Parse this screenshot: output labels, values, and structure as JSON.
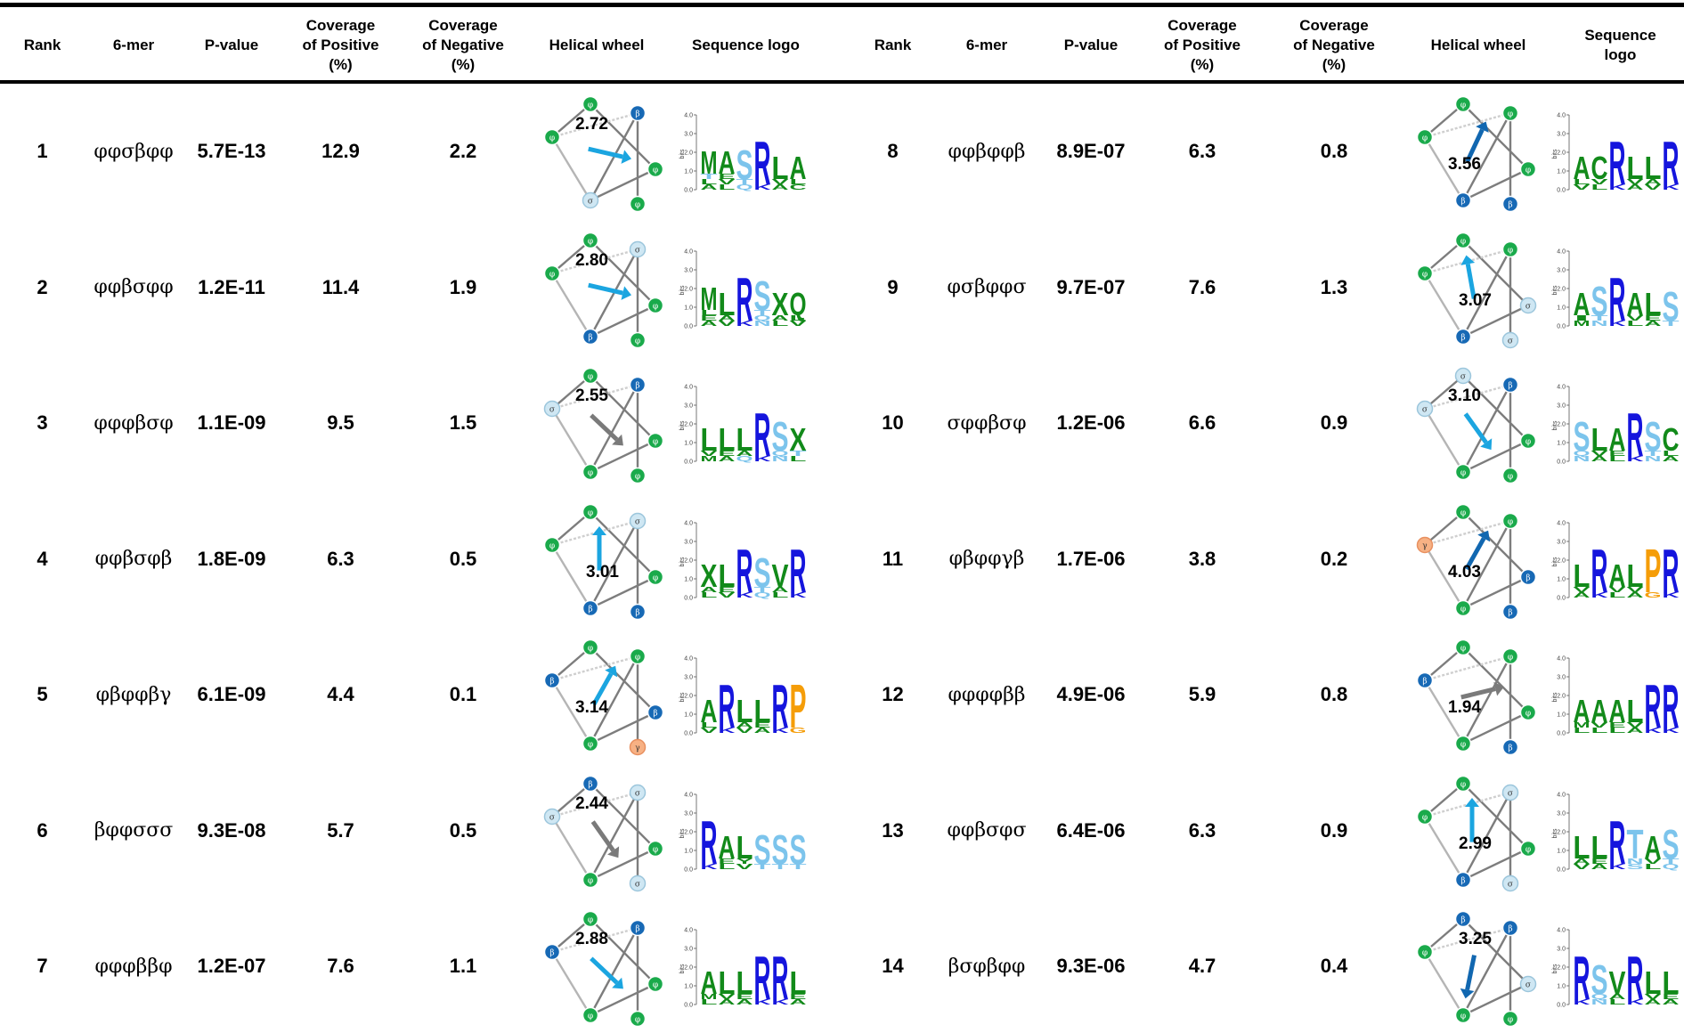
{
  "headers": {
    "rank": "Rank",
    "mer": "6-mer",
    "pval": "P-value",
    "covpos": "Coverage\nof Positive\n(%)",
    "covneg": "Coverage\nof Negative\n(%)",
    "wheel": "Helical wheel",
    "logo": "Sequence logo",
    "logo_right": "Sequence\nlogo"
  },
  "colors": {
    "phi": "#1aaa4b",
    "beta": "#1769b5",
    "sigma": "#cfe7f3",
    "gamma": "#f7b184",
    "arrow_blue": "#1ba5e0",
    "arrow_dark": "#1167b0",
    "arrow_gray": "#7a7a7a",
    "logo_green": "#128a1a",
    "logo_blue": "#1515dd",
    "logo_light": "#7cc4ec",
    "logo_orange": "#f59d08"
  },
  "logo_axis": {
    "ylabel": "bits",
    "ticks": [
      "4.0",
      "3.0",
      "2.0",
      "1.0",
      "0.0"
    ]
  },
  "rows_left": [
    {
      "rank": "1",
      "mer": "φφσβφφ",
      "pval": "5.7E-13",
      "cov_pos": "12.9",
      "cov_neg": "2.2",
      "moment": "2.72",
      "arrow": "blue",
      "logo": [
        [
          "M",
          "ALT",
          "#128a1a"
        ],
        [
          "A",
          "LVE",
          "#128a1a"
        ],
        [
          "S",
          "QT",
          "#7cc4ec"
        ],
        [
          "R",
          "K",
          "#1515dd"
        ],
        [
          "L",
          "AV",
          "#128a1a"
        ],
        [
          "A",
          "CL",
          "#128a1a"
        ]
      ]
    },
    {
      "rank": "2",
      "mer": "φφβσφφ",
      "pval": "1.2E-11",
      "cov_pos": "11.4",
      "cov_neg": "1.9",
      "moment": "2.80",
      "arrow": "blue",
      "logo": [
        [
          "M",
          "AEL",
          "#128a1a"
        ],
        [
          "L",
          "VA",
          "#128a1a"
        ],
        [
          "R",
          "K",
          "#1515dd"
        ],
        [
          "S",
          "NQT",
          "#7cc4ec"
        ],
        [
          "X",
          "LA",
          "#128a1a"
        ],
        [
          "Q",
          "VL",
          "#128a1a"
        ]
      ]
    },
    {
      "rank": "3",
      "mer": "φφφβσφ",
      "pval": "1.1E-09",
      "cov_pos": "9.5",
      "cov_neg": "1.5",
      "moment": "2.55",
      "arrow": "gray",
      "logo": [
        [
          "L",
          "MV",
          "#128a1a"
        ],
        [
          "L",
          "AE",
          "#128a1a"
        ],
        [
          "L",
          "QA",
          "#128a1a"
        ],
        [
          "R",
          "K",
          "#1515dd"
        ],
        [
          "S",
          "NQ",
          "#7cc4ec"
        ],
        [
          "X",
          "LT",
          "#128a1a"
        ]
      ]
    },
    {
      "rank": "4",
      "mer": "φφβσφβ",
      "pval": "1.8E-09",
      "cov_pos": "6.3",
      "cov_neg": "0.5",
      "moment": "3.01",
      "arrow": "blue",
      "logo": [
        [
          "X",
          "LA",
          "#128a1a"
        ],
        [
          "L",
          "VE",
          "#128a1a"
        ],
        [
          "R",
          "K",
          "#1515dd"
        ],
        [
          "S",
          "QT",
          "#7cc4ec"
        ],
        [
          "V",
          "LA",
          "#128a1a"
        ],
        [
          "R",
          "K",
          "#1515dd"
        ]
      ]
    },
    {
      "rank": "5",
      "mer": "φβφφβγ",
      "pval": "6.1E-09",
      "cov_pos": "4.4",
      "cov_neg": "0.1",
      "moment": "3.14",
      "arrow": "blue",
      "logo": [
        [
          "A",
          "VL",
          "#128a1a"
        ],
        [
          "R",
          "K",
          "#1515dd"
        ],
        [
          "L",
          "VA",
          "#128a1a"
        ],
        [
          "L",
          "AE",
          "#128a1a"
        ],
        [
          "R",
          "K",
          "#1515dd"
        ],
        [
          "P",
          "G",
          "#f59d08"
        ]
      ]
    },
    {
      "rank": "6",
      "mer": "βφφσσσ",
      "pval": "9.3E-08",
      "cov_pos": "5.7",
      "cov_neg": "0.5",
      "moment": "2.44",
      "arrow": "gray",
      "logo": [
        [
          "R",
          "K",
          "#1515dd"
        ],
        [
          "A",
          "LE",
          "#128a1a"
        ],
        [
          "L",
          "VY",
          "#128a1a"
        ],
        [
          "S",
          "T",
          "#7cc4ec"
        ],
        [
          "S",
          "T",
          "#7cc4ec"
        ],
        [
          "S",
          "T",
          "#7cc4ec"
        ]
      ]
    },
    {
      "rank": "7",
      "mer": "φφφββφ",
      "pval": "1.2E-07",
      "cov_pos": "7.6",
      "cov_neg": "1.1",
      "moment": "2.88",
      "arrow": "blue",
      "logo": [
        [
          "A",
          "LM",
          "#128a1a"
        ],
        [
          "L",
          "AV",
          "#128a1a"
        ],
        [
          "L",
          "AE",
          "#128a1a"
        ],
        [
          "R",
          "K",
          "#1515dd"
        ],
        [
          "R",
          "K",
          "#1515dd"
        ],
        [
          "L",
          "AE",
          "#128a1a"
        ]
      ]
    }
  ],
  "rows_right": [
    {
      "rank": "8",
      "mer": "φφβφφβ",
      "pval": "8.9E-07",
      "cov_pos": "6.3",
      "cov_neg": "0.8",
      "moment": "3.56",
      "arrow": "dark",
      "logo": [
        [
          "A",
          "VL",
          "#128a1a"
        ],
        [
          "C",
          "LV",
          "#128a1a"
        ],
        [
          "R",
          "K",
          "#1515dd"
        ],
        [
          "L",
          "AV",
          "#128a1a"
        ],
        [
          "L",
          "VA",
          "#128a1a"
        ],
        [
          "R",
          "K",
          "#1515dd"
        ]
      ]
    },
    {
      "rank": "9",
      "mer": "φσβφφσ",
      "pval": "9.7E-07",
      "cov_pos": "7.6",
      "cov_neg": "1.3",
      "moment": "3.07",
      "arrow": "blue",
      "logo": [
        [
          "A",
          "MI",
          "#128a1a"
        ],
        [
          "S",
          "NT",
          "#7cc4ec"
        ],
        [
          "R",
          "K",
          "#1515dd"
        ],
        [
          "A",
          "LV",
          "#128a1a"
        ],
        [
          "L",
          "AE",
          "#128a1a"
        ],
        [
          "S",
          "T",
          "#7cc4ec"
        ]
      ]
    },
    {
      "rank": "10",
      "mer": "σφφβσφ",
      "pval": "1.2E-06",
      "cov_pos": "6.6",
      "cov_neg": "0.9",
      "moment": "3.10",
      "arrow": "blue",
      "logo": [
        [
          "S",
          "NQ",
          "#7cc4ec"
        ],
        [
          "L",
          "AV",
          "#128a1a"
        ],
        [
          "A",
          "LE",
          "#128a1a"
        ],
        [
          "R",
          "K",
          "#1515dd"
        ],
        [
          "S",
          "NT",
          "#7cc4ec"
        ],
        [
          "C",
          "AL",
          "#128a1a"
        ]
      ]
    },
    {
      "rank": "11",
      "mer": "φβφφγβ",
      "pval": "1.7E-06",
      "cov_pos": "3.8",
      "cov_neg": "0.2",
      "moment": "4.03",
      "arrow": "dark",
      "logo": [
        [
          "L",
          "AV",
          "#128a1a"
        ],
        [
          "R",
          "K",
          "#1515dd"
        ],
        [
          "A",
          "LV",
          "#128a1a"
        ],
        [
          "L",
          "AV",
          "#128a1a"
        ],
        [
          "P",
          "G",
          "#f59d08"
        ],
        [
          "R",
          "K",
          "#1515dd"
        ]
      ]
    },
    {
      "rank": "12",
      "mer": "φφφφββ",
      "pval": "4.9E-06",
      "cov_pos": "5.9",
      "cov_neg": "0.8",
      "moment": "1.94",
      "arrow": "gray",
      "logo": [
        [
          "A",
          "LM",
          "#128a1a"
        ],
        [
          "A",
          "LV",
          "#128a1a"
        ],
        [
          "A",
          "LE",
          "#128a1a"
        ],
        [
          "L",
          "AV",
          "#128a1a"
        ],
        [
          "R",
          "K",
          "#1515dd"
        ],
        [
          "R",
          "K",
          "#1515dd"
        ]
      ]
    },
    {
      "rank": "13",
      "mer": "φφβσφσ",
      "pval": "6.4E-06",
      "cov_pos": "6.3",
      "cov_neg": "0.9",
      "moment": "2.99",
      "arrow": "blue",
      "logo": [
        [
          "L",
          "VA",
          "#128a1a"
        ],
        [
          "L",
          "AE",
          "#128a1a"
        ],
        [
          "R",
          "K",
          "#1515dd"
        ],
        [
          "T",
          "SN",
          "#7cc4ec"
        ],
        [
          "A",
          "LV",
          "#128a1a"
        ],
        [
          "S",
          "QT",
          "#7cc4ec"
        ]
      ]
    },
    {
      "rank": "14",
      "mer": "βσφβφφ",
      "pval": "9.3E-06",
      "cov_pos": "4.7",
      "cov_neg": "0.4",
      "moment": "3.25",
      "arrow": "dark",
      "logo": [
        [
          "R",
          "K",
          "#1515dd"
        ],
        [
          "S",
          "NQ",
          "#7cc4ec"
        ],
        [
          "V",
          "LA",
          "#128a1a"
        ],
        [
          "R",
          "K",
          "#1515dd"
        ],
        [
          "L",
          "AV",
          "#128a1a"
        ],
        [
          "L",
          "AE",
          "#128a1a"
        ]
      ]
    }
  ]
}
